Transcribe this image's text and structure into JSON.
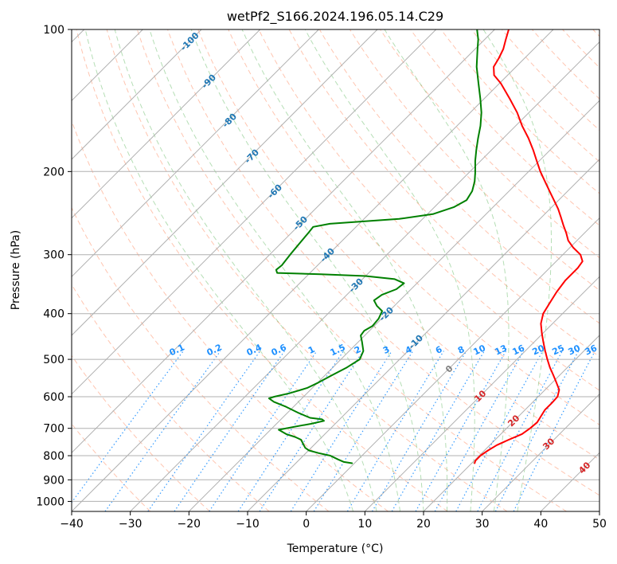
{
  "chart_data": {
    "type": "line",
    "title": "wetPf2_S166.2024.196.05.14.C29",
    "xlabel": "Temperature (°C)",
    "ylabel": "Pressure (hPa)",
    "xlim": [
      -40,
      50
    ],
    "ylim": [
      1050,
      100
    ],
    "y_scale": "log",
    "grid": true,
    "x_ticks": [
      -40,
      -30,
      -20,
      -10,
      0,
      10,
      20,
      30,
      40,
      50
    ],
    "x_tick_labels": [
      "−40",
      "−30",
      "−20",
      "−10",
      "0",
      "10",
      "20",
      "30",
      "40",
      "50"
    ],
    "y_ticks": [
      1000,
      900,
      800,
      700,
      600,
      500,
      400,
      300,
      200,
      100
    ],
    "y_tick_labels": [
      "1000",
      "900",
      "800",
      "700",
      "600",
      "500",
      "400",
      "300",
      "200",
      "100"
    ],
    "series": [
      {
        "role": "temperature",
        "color": "#ff0000",
        "points": [
          {
            "p": 830,
            "t": 20.5
          },
          {
            "p": 820,
            "t": 20.2
          },
          {
            "p": 800,
            "t": 20.2
          },
          {
            "p": 780,
            "t": 20.6
          },
          {
            "p": 760,
            "t": 21.2
          },
          {
            "p": 740,
            "t": 22.3
          },
          {
            "p": 720,
            "t": 23.6
          },
          {
            "p": 700,
            "t": 24.0
          },
          {
            "p": 680,
            "t": 24.2
          },
          {
            "p": 660,
            "t": 23.8
          },
          {
            "p": 640,
            "t": 23.4
          },
          {
            "p": 620,
            "t": 23.4
          },
          {
            "p": 600,
            "t": 23.3
          },
          {
            "p": 580,
            "t": 22.4
          },
          {
            "p": 560,
            "t": 20.7
          },
          {
            "p": 540,
            "t": 18.9
          },
          {
            "p": 520,
            "t": 17.0
          },
          {
            "p": 500,
            "t": 15.2
          },
          {
            "p": 480,
            "t": 13.4
          },
          {
            "p": 460,
            "t": 11.6
          },
          {
            "p": 440,
            "t": 9.8
          },
          {
            "p": 420,
            "t": 8.0
          },
          {
            "p": 400,
            "t": 6.7
          },
          {
            "p": 380,
            "t": 6.0
          },
          {
            "p": 360,
            "t": 5.3
          },
          {
            "p": 340,
            "t": 4.8
          },
          {
            "p": 320,
            "t": 4.8
          },
          {
            "p": 310,
            "t": 4.5
          },
          {
            "p": 300,
            "t": 3.0
          },
          {
            "p": 290,
            "t": 0.6
          },
          {
            "p": 280,
            "t": -1.5
          },
          {
            "p": 270,
            "t": -3.1
          },
          {
            "p": 260,
            "t": -4.9
          },
          {
            "p": 250,
            "t": -6.7
          },
          {
            "p": 240,
            "t": -8.6
          },
          {
            "p": 230,
            "t": -10.8
          },
          {
            "p": 220,
            "t": -13.1
          },
          {
            "p": 210,
            "t": -15.5
          },
          {
            "p": 200,
            "t": -18.0
          },
          {
            "p": 190,
            "t": -20.4
          },
          {
            "p": 180,
            "t": -22.9
          },
          {
            "p": 170,
            "t": -25.7
          },
          {
            "p": 160,
            "t": -28.9
          },
          {
            "p": 150,
            "t": -32.0
          },
          {
            "p": 140,
            "t": -35.7
          },
          {
            "p": 130,
            "t": -39.8
          },
          {
            "p": 125,
            "t": -42.3
          },
          {
            "p": 120,
            "t": -43.8
          },
          {
            "p": 115,
            "t": -44.4
          },
          {
            "p": 110,
            "t": -45.2
          },
          {
            "p": 105,
            "t": -46.4
          },
          {
            "p": 100,
            "t": -47.6
          }
        ]
      },
      {
        "role": "dewpoint",
        "color": "#008000",
        "points": [
          {
            "p": 830,
            "t": -0.4
          },
          {
            "p": 825,
            "t": -2.0
          },
          {
            "p": 815,
            "t": -3.4
          },
          {
            "p": 800,
            "t": -5.4
          },
          {
            "p": 790,
            "t": -7.8
          },
          {
            "p": 780,
            "t": -9.9
          },
          {
            "p": 770,
            "t": -11.0
          },
          {
            "p": 760,
            "t": -11.7
          },
          {
            "p": 750,
            "t": -12.4
          },
          {
            "p": 740,
            "t": -13.1
          },
          {
            "p": 730,
            "t": -14.6
          },
          {
            "p": 720,
            "t": -16.6
          },
          {
            "p": 705,
            "t": -18.6
          },
          {
            "p": 695,
            "t": -16.5
          },
          {
            "p": 685,
            "t": -14.2
          },
          {
            "p": 675,
            "t": -12.4
          },
          {
            "p": 670,
            "t": -13.0
          },
          {
            "p": 665,
            "t": -15.3
          },
          {
            "p": 650,
            "t": -18.0
          },
          {
            "p": 630,
            "t": -21.3
          },
          {
            "p": 615,
            "t": -24.2
          },
          {
            "p": 605,
            "t": -25.6
          },
          {
            "p": 600,
            "t": -25.0
          },
          {
            "p": 590,
            "t": -23.0
          },
          {
            "p": 575,
            "t": -20.9
          },
          {
            "p": 560,
            "t": -19.9
          },
          {
            "p": 540,
            "t": -18.8
          },
          {
            "p": 520,
            "t": -17.6
          },
          {
            "p": 500,
            "t": -16.8
          },
          {
            "p": 480,
            "t": -17.6
          },
          {
            "p": 460,
            "t": -19.3
          },
          {
            "p": 445,
            "t": -20.7
          },
          {
            "p": 435,
            "t": -20.9
          },
          {
            "p": 425,
            "t": -20.3
          },
          {
            "p": 410,
            "t": -20.5
          },
          {
            "p": 395,
            "t": -21.2
          },
          {
            "p": 385,
            "t": -23.0
          },
          {
            "p": 375,
            "t": -24.4
          },
          {
            "p": 365,
            "t": -24.0
          },
          {
            "p": 355,
            "t": -22.5
          },
          {
            "p": 345,
            "t": -22.2
          },
          {
            "p": 338,
            "t": -24.5
          },
          {
            "p": 333,
            "t": -30.0
          },
          {
            "p": 330,
            "t": -38.0
          },
          {
            "p": 328,
            "t": -45.6
          },
          {
            "p": 323,
            "t": -46.3
          },
          {
            "p": 316,
            "t": -46.1
          },
          {
            "p": 300,
            "t": -46.5
          },
          {
            "p": 285,
            "t": -46.8
          },
          {
            "p": 270,
            "t": -47.1
          },
          {
            "p": 262,
            "t": -47.3
          },
          {
            "p": 258,
            "t": -45.0
          },
          {
            "p": 252,
            "t": -34.0
          },
          {
            "p": 246,
            "t": -29.0
          },
          {
            "p": 238,
            "t": -26.7
          },
          {
            "p": 230,
            "t": -25.7
          },
          {
            "p": 220,
            "t": -26.3
          },
          {
            "p": 210,
            "t": -27.5
          },
          {
            "p": 200,
            "t": -29.1
          },
          {
            "p": 190,
            "t": -30.9
          },
          {
            "p": 180,
            "t": -32.6
          },
          {
            "p": 170,
            "t": -34.3
          },
          {
            "p": 160,
            "t": -36.0
          },
          {
            "p": 150,
            "t": -38.1
          },
          {
            "p": 140,
            "t": -40.7
          },
          {
            "p": 130,
            "t": -43.6
          },
          {
            "p": 120,
            "t": -46.7
          },
          {
            "p": 110,
            "t": -49.6
          },
          {
            "p": 105,
            "t": -51.1
          },
          {
            "p": 100,
            "t": -53.0
          }
        ]
      }
    ],
    "isotherm_labels": [
      "-100",
      "-90",
      "-80",
      "-70",
      "-60",
      "-50",
      "-40",
      "-30",
      "-20",
      "-10",
      "0",
      "10",
      "20",
      "30",
      "40"
    ],
    "mixing_ratio_labels": [
      "0.1",
      "0.2",
      "0.4",
      "0.6",
      "1",
      "1.5",
      "2",
      "3",
      "4",
      "6",
      "8",
      "10",
      "13",
      "16",
      "20",
      "25",
      "30",
      "36"
    ],
    "colors": {
      "temperature": "#ff0000",
      "dewpoint": "#008000",
      "isotherm_cold_label": "#1f77b4",
      "isotherm_zero_label": "#808080",
      "isotherm_warm_label": "#d62728",
      "mixing_ratio": "#1e90ff",
      "dry_adiabat": "#ff7f50",
      "moist_adiabat": "#2ca02c",
      "grid": "#b0b0b0"
    }
  }
}
